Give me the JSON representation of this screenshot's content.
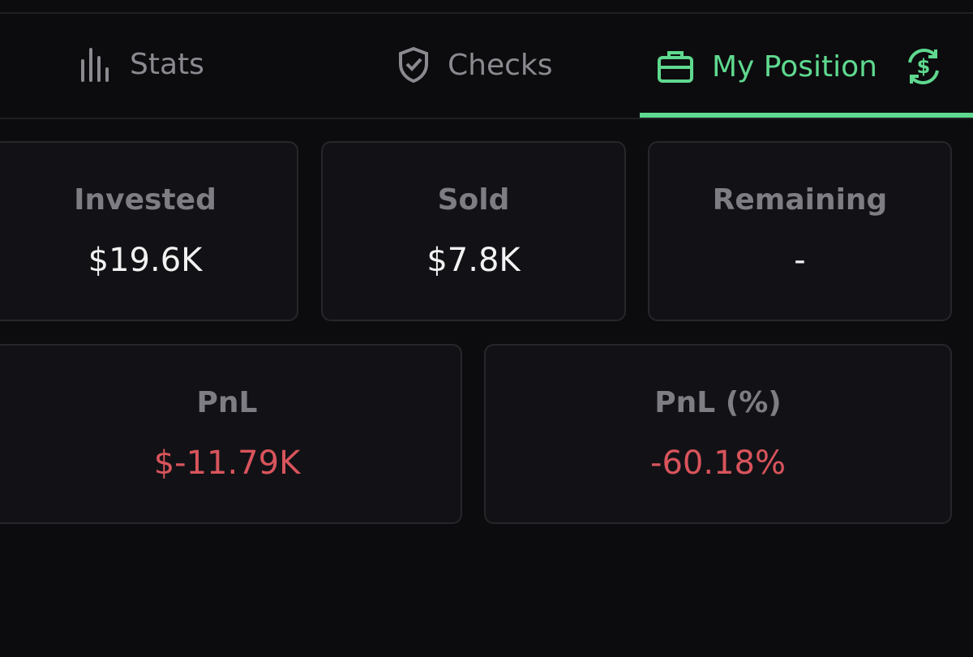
{
  "tabs": [
    {
      "label": "Stats"
    },
    {
      "label": "Checks"
    },
    {
      "label": "My Position"
    }
  ],
  "cards_top": [
    {
      "label": "Invested",
      "value": "$19.6K"
    },
    {
      "label": "Sold",
      "value": "$7.8K"
    },
    {
      "label": "Remaining",
      "value": "-"
    }
  ],
  "cards_bottom": [
    {
      "label": "PnL",
      "value": "$-11.79K"
    },
    {
      "label": "PnL (%)",
      "value": "-60.18%"
    }
  ]
}
